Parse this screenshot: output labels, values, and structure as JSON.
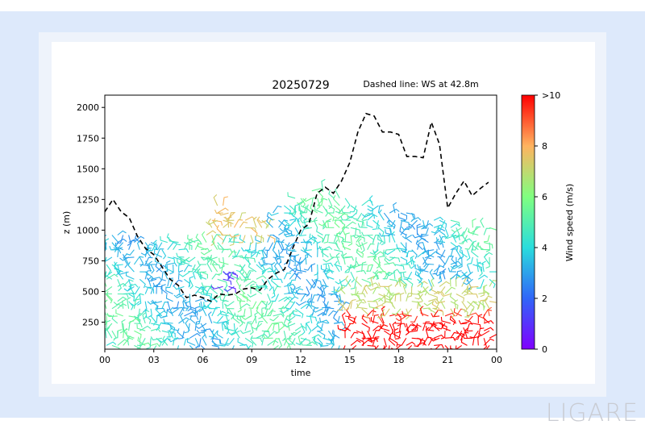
{
  "watermark": "LIGARE",
  "chart_data": {
    "type": "line",
    "title": "20250729",
    "subtitle": "Dashed line: WS at 42.8m",
    "xlabel": "time",
    "ylabel": "z (m)",
    "x_ticks": [
      "00",
      "03",
      "06",
      "09",
      "12",
      "15",
      "18",
      "21",
      "00"
    ],
    "x_tick_hours": [
      0,
      3,
      6,
      9,
      12,
      15,
      18,
      21,
      24
    ],
    "y_ticks": [
      250,
      500,
      750,
      1000,
      1250,
      1500,
      1750,
      2000
    ],
    "xlim": [
      0,
      24
    ],
    "ylim": [
      30,
      2100
    ],
    "colorbar": {
      "label": "Wind speed (m/s)",
      "ticks": [
        "0",
        "2",
        "4",
        "6",
        "8",
        ">10"
      ],
      "tick_values": [
        0,
        2,
        4,
        6,
        8,
        10
      ],
      "range": [
        0,
        10
      ]
    },
    "series": [
      {
        "style": "dashed",
        "color": "#000000",
        "x": [
          0,
          0.5,
          1,
          1.5,
          2,
          2.5,
          3,
          3.5,
          4,
          4.5,
          5,
          5.5,
          6,
          6.5,
          7,
          7.5,
          8,
          8.5,
          9,
          9.5,
          10,
          10.5,
          11,
          11.5,
          12,
          12.5,
          13,
          13.5,
          14,
          14.5,
          15,
          15.5,
          16,
          16.5,
          17,
          17.5,
          18,
          18.5,
          19,
          19.5,
          20,
          20.5,
          21,
          21.5,
          22,
          22.5,
          23,
          23.5
        ],
        "y": [
          1150,
          1250,
          1150,
          1100,
          950,
          850,
          800,
          700,
          600,
          550,
          450,
          470,
          450,
          420,
          480,
          470,
          480,
          520,
          530,
          510,
          600,
          650,
          680,
          850,
          1000,
          1050,
          1300,
          1350,
          1300,
          1400,
          1550,
          1800,
          1950,
          1930,
          1800,
          1800,
          1780,
          1600,
          1600,
          1590,
          1880,
          1700,
          1180,
          1300,
          1400,
          1280,
          1340,
          1390
        ]
      }
    ]
  }
}
